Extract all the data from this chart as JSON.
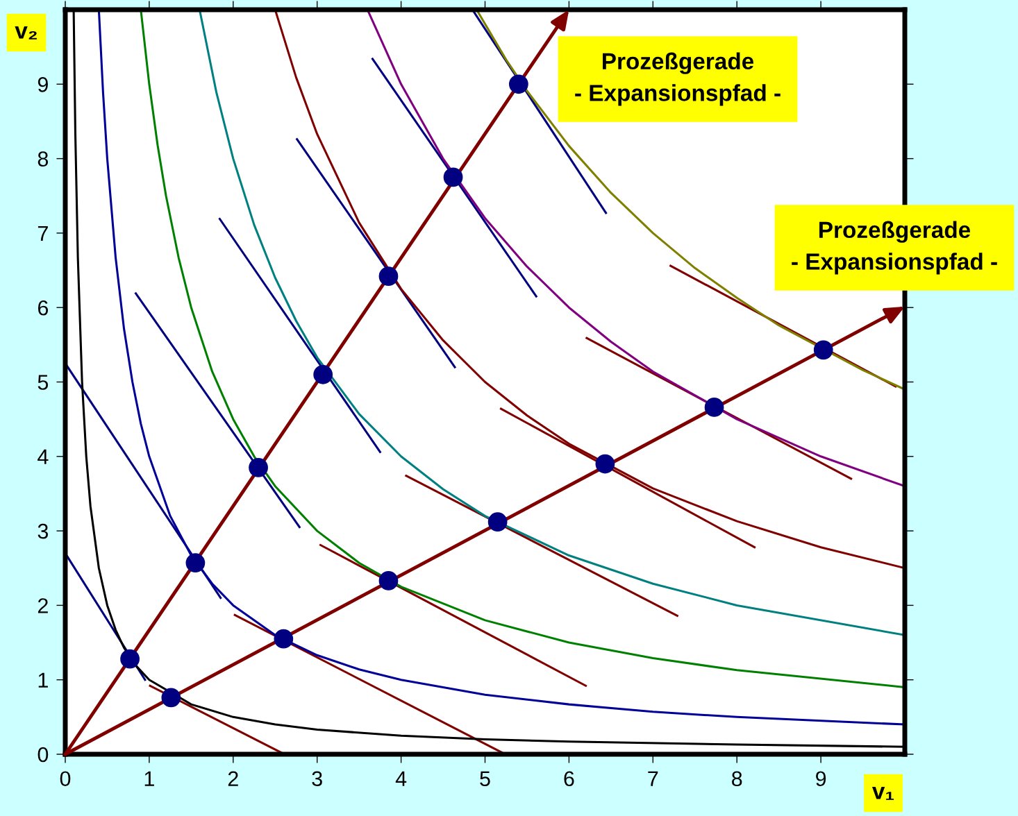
{
  "chart_data": {
    "type": "line",
    "xlabel": "v₁",
    "ylabel": "v₂",
    "xlim": [
      0,
      10
    ],
    "ylim": [
      0,
      10
    ],
    "xticks": [
      0,
      1,
      2,
      3,
      4,
      5,
      6,
      7,
      8,
      9
    ],
    "yticks": [
      0,
      1,
      2,
      3,
      4,
      5,
      6,
      7,
      8,
      9
    ],
    "grid": false,
    "annotations": [
      "Prozeßgerade\n- Expansionspfad -",
      "Prozeßgerade\n- Expansionspfad -"
    ],
    "series": [
      {
        "type": "line",
        "color": "#000000",
        "x": [
          0.1,
          0.12,
          0.15,
          0.2,
          0.25,
          0.3,
          0.4,
          0.5,
          0.6,
          0.7,
          0.85,
          1,
          1.5,
          2,
          2.5,
          3,
          4,
          5,
          6,
          8,
          10
        ],
        "values": [
          10,
          8.33,
          6.67,
          5,
          4,
          3.33,
          2.5,
          2,
          1.67,
          1.43,
          1.18,
          1,
          0.67,
          0.5,
          0.4,
          0.33,
          0.25,
          0.2,
          0.17,
          0.13,
          0.1
        ]
      },
      {
        "type": "line",
        "color": "#000099",
        "x": [
          0.4,
          0.45,
          0.5,
          0.6,
          0.7,
          0.8,
          0.9,
          1,
          1.25,
          1.5,
          1.75,
          2,
          2.5,
          3,
          3.5,
          4,
          5,
          6,
          7,
          8,
          10
        ],
        "values": [
          10,
          8.89,
          8,
          6.67,
          5.71,
          5,
          4.44,
          4,
          3.2,
          2.67,
          2.29,
          2,
          1.6,
          1.33,
          1.14,
          1,
          0.8,
          0.67,
          0.57,
          0.5,
          0.4
        ]
      },
      {
        "type": "line",
        "color": "#008000",
        "x": [
          0.9,
          1,
          1.1,
          1.2,
          1.35,
          1.5,
          1.75,
          2,
          2.25,
          2.5,
          3,
          3.5,
          4,
          5,
          6,
          7,
          8,
          10
        ],
        "values": [
          10,
          9,
          8.18,
          7.5,
          6.67,
          6,
          5.14,
          4.5,
          4,
          3.6,
          3,
          2.57,
          2.25,
          1.8,
          1.5,
          1.29,
          1.13,
          0.9
        ]
      },
      {
        "type": "line",
        "color": "#008080",
        "x": [
          1.6,
          1.8,
          2,
          2.25,
          2.5,
          2.75,
          3,
          3.5,
          4,
          4.5,
          5,
          6,
          7,
          8,
          10
        ],
        "values": [
          10,
          8.89,
          8,
          7.11,
          6.4,
          5.82,
          5.33,
          4.57,
          4,
          3.56,
          3.2,
          2.67,
          2.29,
          2,
          1.6
        ]
      },
      {
        "type": "line",
        "color": "#800000",
        "x": [
          2.5,
          2.75,
          3,
          3.5,
          4,
          4.5,
          5,
          5.5,
          6,
          7,
          8,
          9,
          10
        ],
        "values": [
          10,
          9.09,
          8.33,
          7.14,
          6.25,
          5.56,
          5,
          4.55,
          4.17,
          3.57,
          3.13,
          2.78,
          2.5
        ]
      },
      {
        "type": "line",
        "color": "#800080",
        "x": [
          3.6,
          4,
          4.5,
          5,
          5.5,
          6,
          6.5,
          7,
          8,
          9,
          10
        ],
        "values": [
          10,
          9,
          8,
          7.2,
          6.55,
          6,
          5.54,
          5.14,
          4.5,
          4,
          3.6
        ]
      },
      {
        "type": "line",
        "color": "#808000",
        "x": [
          4.9,
          5.25,
          5.5,
          6,
          6.5,
          7,
          7.5,
          8,
          8.5,
          9.5,
          10
        ],
        "values": [
          10,
          9.33,
          8.91,
          8.17,
          7.54,
          7,
          6.53,
          6.13,
          5.76,
          5.16,
          4.9
        ]
      },
      {
        "type": "line",
        "color": "#000080",
        "x": [
          0,
          0.95
        ],
        "values": [
          2.7,
          1.0
        ]
      },
      {
        "type": "line",
        "color": "#000080",
        "x": [
          0,
          1.85
        ],
        "values": [
          5.25,
          2.1
        ]
      },
      {
        "type": "line",
        "color": "#000080",
        "x": [
          0.84,
          2.79
        ],
        "values": [
          6.19,
          3.05
        ]
      },
      {
        "type": "line",
        "color": "#000080",
        "x": [
          1.84,
          3.75
        ],
        "values": [
          7.19,
          4.06
        ]
      },
      {
        "type": "line",
        "color": "#000080",
        "x": [
          2.76,
          4.64
        ],
        "values": [
          8.26,
          5.2
        ]
      },
      {
        "type": "line",
        "color": "#000080",
        "x": [
          3.66,
          5.61
        ],
        "values": [
          9.34,
          6.15
        ]
      },
      {
        "type": "line",
        "color": "#000080",
        "x": [
          4.85,
          6.44
        ],
        "values": [
          10,
          7.27
        ]
      },
      {
        "type": "line",
        "color": "#800000",
        "x": [
          1.01,
          2.61
        ],
        "values": [
          0.92,
          0
        ]
      },
      {
        "type": "line",
        "color": "#800000",
        "x": [
          2.02,
          5.24
        ],
        "values": [
          1.87,
          0
        ]
      },
      {
        "type": "line",
        "color": "#800000",
        "x": [
          3.04,
          6.2
        ],
        "values": [
          2.81,
          0.92
        ]
      },
      {
        "type": "line",
        "color": "#800000",
        "x": [
          4.06,
          7.29
        ],
        "values": [
          3.74,
          1.86
        ]
      },
      {
        "type": "line",
        "color": "#800000",
        "x": [
          5.19,
          8.21
        ],
        "values": [
          4.64,
          2.78
        ]
      },
      {
        "type": "line",
        "color": "#800000",
        "x": [
          6.21,
          9.36
        ],
        "values": [
          5.59,
          3.7
        ]
      },
      {
        "type": "line",
        "color": "#800000",
        "x": [
          7.21,
          9.89
        ],
        "values": [
          6.56,
          4.94
        ]
      },
      {
        "type": "scatter",
        "color": "#000080",
        "marker": "circle",
        "x": [
          0.77,
          1.55,
          2.3,
          3.07,
          3.85,
          4.62,
          5.4
        ],
        "values": [
          1.28,
          2.57,
          3.85,
          5.1,
          6.42,
          7.75,
          9.0
        ]
      },
      {
        "type": "scatter",
        "color": "#000080",
        "marker": "circle",
        "x": [
          1.26,
          2.6,
          3.85,
          5.15,
          6.43,
          7.73,
          9.03
        ],
        "values": [
          0.76,
          1.55,
          2.33,
          3.12,
          3.9,
          4.66,
          5.43
        ]
      }
    ]
  }
}
